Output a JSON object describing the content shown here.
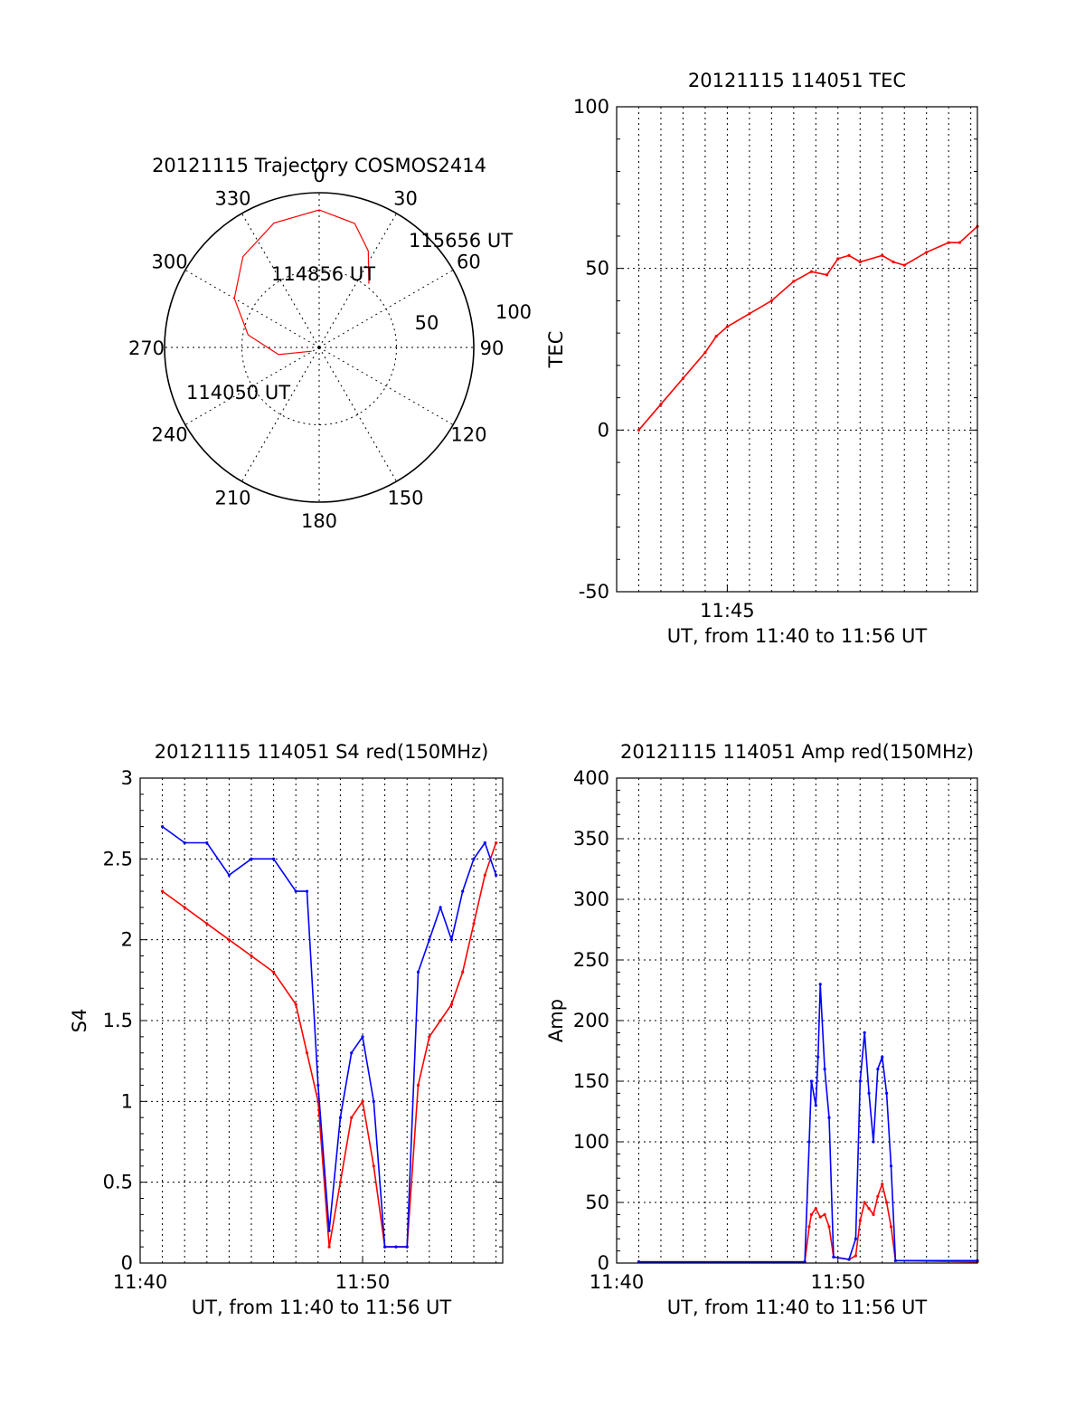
{
  "chart_data": [
    {
      "id": "trajectory",
      "type": "polar",
      "title": "20121115 Trajectory COSMOS2414",
      "azimuth_labels": [
        "0",
        "30",
        "60",
        "90",
        "120",
        "150",
        "180",
        "210",
        "240",
        "270",
        "300",
        "330"
      ],
      "radial_labels": [
        "50",
        "100"
      ],
      "elevation_range": [
        0,
        100
      ],
      "series": [
        {
          "color": "#ff0000",
          "points": [
            [
              244,
              85
            ],
            [
              260,
              66
            ],
            [
              280,
              48
            ],
            [
              300,
              33
            ],
            [
              320,
              21
            ],
            [
              340,
              13
            ],
            [
              360,
              10
            ],
            [
              16,
              15
            ],
            [
              27,
              27
            ],
            [
              38,
              43
            ]
          ]
        }
      ],
      "annotations": [
        {
          "text": "114050 UT"
        },
        {
          "text": "114856 UT"
        },
        {
          "text": "115656 UT"
        }
      ]
    },
    {
      "id": "tec",
      "type": "line",
      "title": "20121115 114051 TEC",
      "xlabel": "UT, from 11:40 to 11:56 UT",
      "ylabel": "TEC",
      "xlim": [
        0,
        16.3
      ],
      "ylim": [
        -50,
        100
      ],
      "yticks": [
        "-50",
        "0",
        "50",
        "100"
      ],
      "xticks": [
        {
          "v": 5,
          "label": "11:45"
        }
      ],
      "grid": true,
      "series": [
        {
          "color": "#ff0000",
          "x": [
            1.0,
            2.0,
            3.0,
            4.0,
            4.5,
            5.0,
            6.0,
            7.0,
            8.0,
            8.8,
            9.5,
            10.0,
            10.5,
            11.0,
            12.0,
            12.5,
            13.0,
            14.0,
            15.0,
            15.5,
            16.3
          ],
          "y": [
            0,
            8,
            16,
            24,
            29,
            32,
            36,
            40,
            46,
            49,
            48,
            53,
            54,
            52,
            54,
            52,
            51,
            55,
            58,
            58,
            63
          ]
        }
      ]
    },
    {
      "id": "s4",
      "type": "line",
      "title": "20121115 114051 S4 red(150MHz)",
      "xlabel": "UT, from 11:40 to 11:56 UT",
      "ylabel": "S4",
      "xlim": [
        0,
        16.3
      ],
      "ylim": [
        0,
        3
      ],
      "yticks": [
        "0",
        "0.5",
        "1",
        "1.5",
        "2",
        "2.5",
        "3"
      ],
      "xticks": [
        {
          "v": 0,
          "label": "11:40"
        },
        {
          "v": 10,
          "label": "11:50"
        }
      ],
      "grid": true,
      "series": [
        {
          "color": "#ff0000",
          "x": [
            1.0,
            2.0,
            3.0,
            4.0,
            5.0,
            6.0,
            7.0,
            7.5,
            8.0,
            8.5,
            9.0,
            9.5,
            10.0,
            10.5,
            11.0,
            11.5,
            12.0,
            12.5,
            13.0,
            13.5,
            14.0,
            14.5,
            15.0,
            15.5,
            16.0
          ],
          "y": [
            2.3,
            2.2,
            2.1,
            2.0,
            1.9,
            1.8,
            1.6,
            1.3,
            1.0,
            0.1,
            0.5,
            0.9,
            1.0,
            0.6,
            0.1,
            0.1,
            0.1,
            1.1,
            1.4,
            1.5,
            1.6,
            1.8,
            2.1,
            2.4,
            2.6
          ]
        },
        {
          "color": "#0000ff",
          "x": [
            1.0,
            2.0,
            3.0,
            4.0,
            5.0,
            6.0,
            7.0,
            7.5,
            8.0,
            8.5,
            9.0,
            9.5,
            10.0,
            10.5,
            11.0,
            11.5,
            12.0,
            12.5,
            13.0,
            13.5,
            14.0,
            14.5,
            15.0,
            15.5,
            16.0
          ],
          "y": [
            2.7,
            2.6,
            2.6,
            2.4,
            2.5,
            2.5,
            2.3,
            2.3,
            1.1,
            0.2,
            0.9,
            1.3,
            1.4,
            1.0,
            0.1,
            0.1,
            0.1,
            1.8,
            2.0,
            2.2,
            2.0,
            2.3,
            2.5,
            2.6,
            2.4
          ]
        }
      ]
    },
    {
      "id": "amp",
      "type": "line",
      "title": "20121115 114051 Amp red(150MHz)",
      "xlabel": "UT, from 11:40 to 11:56 UT",
      "ylabel": "Amp",
      "xlim": [
        0,
        16.3
      ],
      "ylim": [
        0,
        400
      ],
      "yticks": [
        "0",
        "50",
        "100",
        "150",
        "200",
        "250",
        "300",
        "350",
        "400"
      ],
      "xticks": [
        {
          "v": 0,
          "label": "11:40"
        },
        {
          "v": 10,
          "label": "11:50"
        }
      ],
      "grid": true,
      "series": [
        {
          "color": "#ff0000",
          "x": [
            1.0,
            8.5,
            8.7,
            8.8,
            9.0,
            9.2,
            9.4,
            9.6,
            9.8,
            10.5,
            10.8,
            11.0,
            11.2,
            11.4,
            11.6,
            11.8,
            12.0,
            12.2,
            12.4,
            12.6,
            16.3
          ],
          "y": [
            1,
            1,
            30,
            40,
            45,
            38,
            40,
            30,
            5,
            3,
            6,
            35,
            50,
            45,
            40,
            55,
            65,
            50,
            30,
            2,
            1
          ]
        },
        {
          "color": "#0000ff",
          "x": [
            1.0,
            8.5,
            8.7,
            8.8,
            9.0,
            9.1,
            9.2,
            9.4,
            9.6,
            9.8,
            10.5,
            10.8,
            11.0,
            11.2,
            11.4,
            11.6,
            11.8,
            12.0,
            12.2,
            12.4,
            12.6,
            16.3
          ],
          "y": [
            1,
            1,
            100,
            150,
            130,
            170,
            230,
            160,
            120,
            5,
            3,
            20,
            150,
            190,
            140,
            100,
            160,
            170,
            140,
            80,
            2,
            2
          ]
        }
      ]
    }
  ]
}
